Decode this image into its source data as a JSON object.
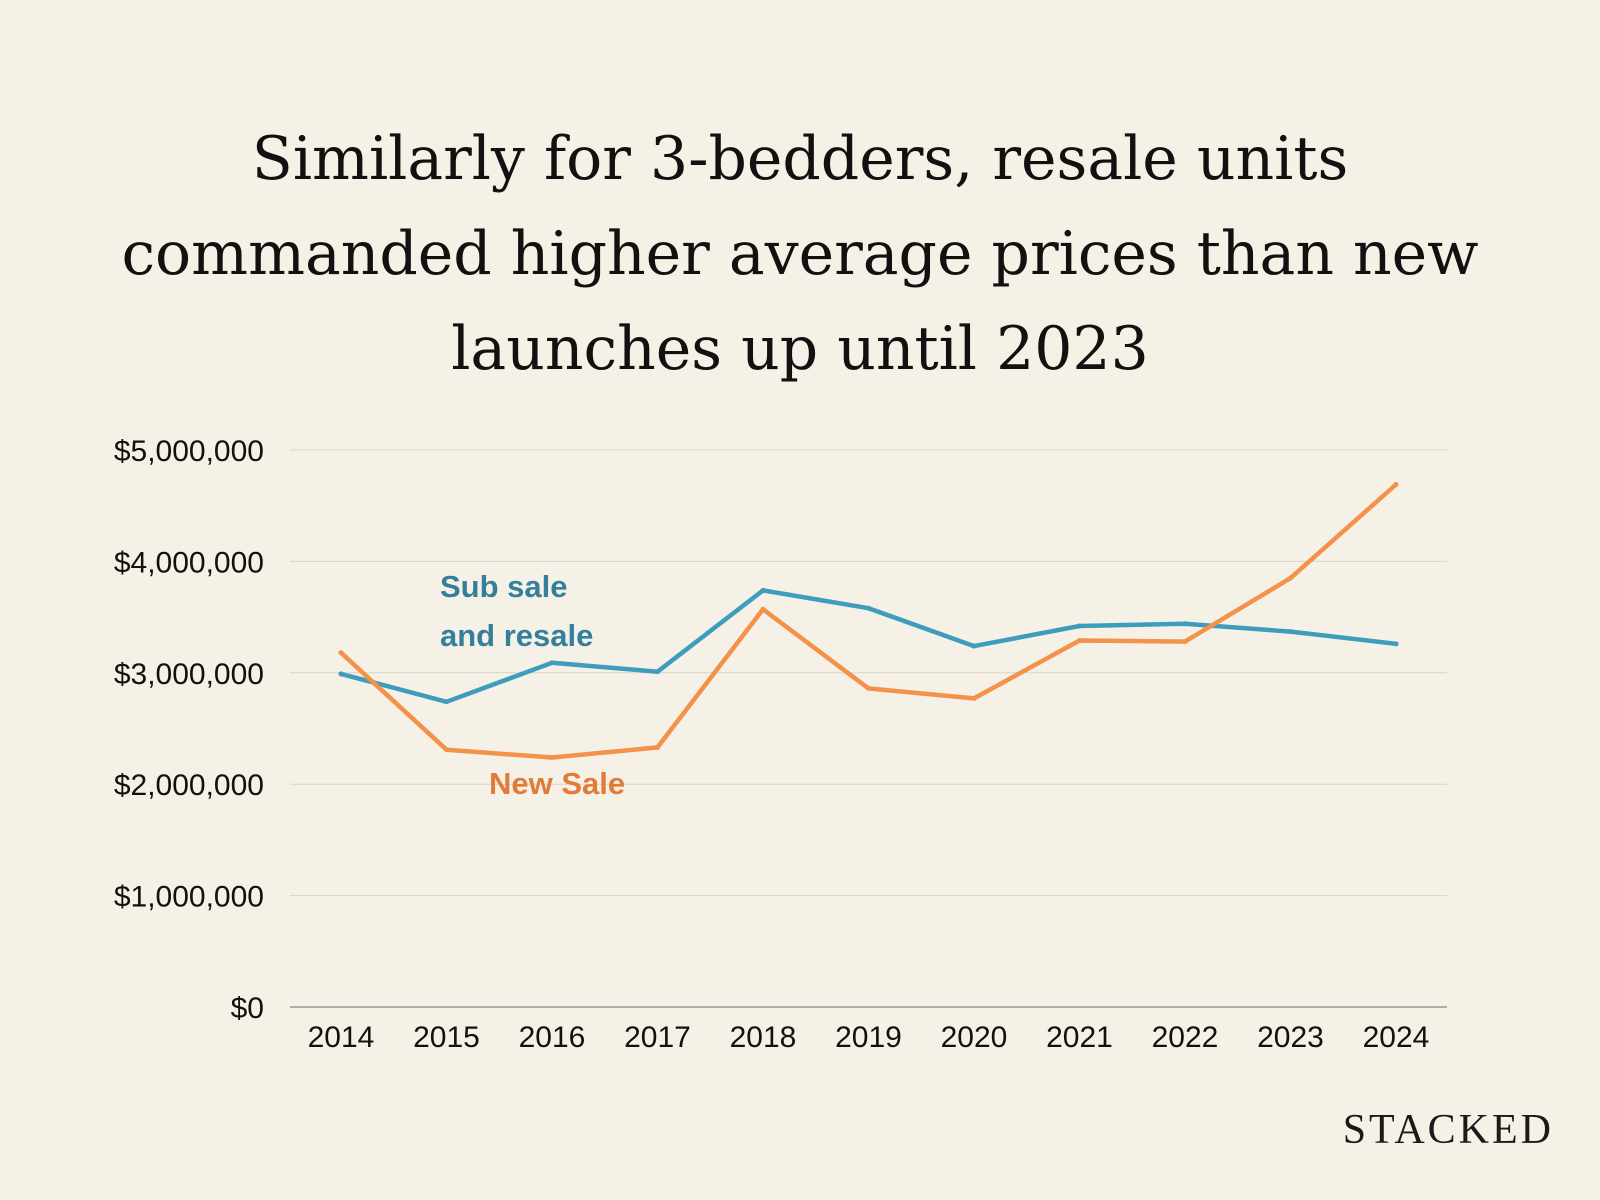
{
  "title_lines": [
    "Similarly for 3-bedders, resale units",
    "commanded higher average prices than new",
    "launches up until 2023"
  ],
  "brand": "STACKED",
  "colors": {
    "background": "#f6f1e6",
    "resale": "#3e9dbd",
    "new_sale": "#f4914a",
    "grid": "#d9d4c8",
    "text": "#111111"
  },
  "chart_data": {
    "type": "line",
    "title": "Similarly for 3-bedders, resale units commanded higher average prices than new launches up until 2023",
    "xlabel": "",
    "ylabel": "",
    "x": [
      "2014",
      "2015",
      "2016",
      "2017",
      "2018",
      "2019",
      "2020",
      "2021",
      "2022",
      "2023",
      "2024"
    ],
    "ylim": [
      0,
      5000000
    ],
    "yticks": [
      0,
      1000000,
      2000000,
      3000000,
      4000000,
      5000000
    ],
    "ytick_labels": [
      "$0",
      "$1,000,000",
      "$2,000,000",
      "$3,000,000",
      "$4,000,000",
      "$5,000,000"
    ],
    "grid": true,
    "legend": "inline labels",
    "series": [
      {
        "name": "Sub sale and resale",
        "label_lines": [
          "Sub sale",
          "and resale"
        ],
        "color": "#3e9dbd",
        "label_color": "#347f9c",
        "values": [
          2990000,
          2740000,
          3090000,
          3010000,
          3740000,
          3580000,
          3240000,
          3420000,
          3440000,
          3370000,
          3260000
        ]
      },
      {
        "name": "New Sale",
        "label_lines": [
          "New Sale"
        ],
        "color": "#f4914a",
        "label_color": "#e07b38",
        "values": [
          3180000,
          2310000,
          2240000,
          2330000,
          3570000,
          2860000,
          2770000,
          3290000,
          3280000,
          3850000,
          4690000
        ]
      }
    ]
  }
}
